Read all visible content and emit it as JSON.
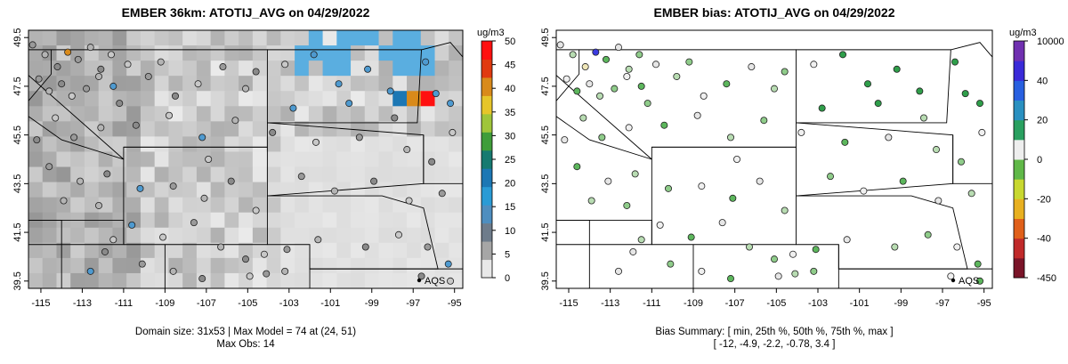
{
  "chart_data": [
    {
      "type": "map",
      "title": "EMBER 36km: ATOTIJ_AVG on 04/29/2022",
      "x_ticks": [
        "-115",
        "-113",
        "-111",
        "-109",
        "-107",
        "-105",
        "-103",
        "-101",
        "-99",
        "-97",
        "-95"
      ],
      "y_ticks": [
        "39.5",
        "41.5",
        "43.5",
        "45.5",
        "47.5",
        "49.5"
      ],
      "colorbar": {
        "unit": "ug/m3",
        "ticks": [
          "0",
          "5",
          "10",
          "15",
          "20",
          "25",
          "30",
          "35",
          "40",
          "45",
          "50"
        ],
        "colors": [
          "#e8e8e8",
          "#a6a6a6",
          "#6e7c8b",
          "#4e8ebf",
          "#2a9bd5",
          "#1c77b4",
          "#167a70",
          "#3f9d3a",
          "#9fc53a",
          "#e6c52a",
          "#d98a1a",
          "#e03a10",
          "#ff1010"
        ]
      },
      "station_label": "AQS",
      "caption_lines": [
        "Domain size: 31x53 | Max Model = 74 at (24, 51)",
        "Max Obs: 14"
      ],
      "x_range": [
        -115.6,
        -94.6
      ],
      "y_range": [
        39.2,
        49.8
      ]
    },
    {
      "type": "map",
      "title": "EMBER bias: ATOTIJ_AVG on 04/29/2022",
      "x_ticks": [
        "-115",
        "-113",
        "-111",
        "-109",
        "-107",
        "-105",
        "-103",
        "-101",
        "-99",
        "-97",
        "-95"
      ],
      "y_ticks": [
        "39.5",
        "41.5",
        "43.5",
        "45.5",
        "47.5",
        "49.5"
      ],
      "colorbar": {
        "unit": "ug/m3",
        "ticks": [
          "10000",
          "40",
          "20",
          "0",
          "-20",
          "-40",
          "-450"
        ],
        "colors": [
          "#7a1428",
          "#c02a2a",
          "#e0601a",
          "#e8b020",
          "#c8d830",
          "#60b848",
          "#eeeeee",
          "#2aa060",
          "#2a90c0",
          "#2860e0",
          "#3a2ad8",
          "#7030b0"
        ]
      },
      "station_label": "AQS",
      "caption_lines": [
        "Bias Summary: [ min, 25th %, 50th %, 75th %, max ]",
        "[ -12,   -4.9,   -2.2,   -0.78,   3.4 ]"
      ],
      "x_range": [
        -115.6,
        -94.6
      ],
      "y_range": [
        39.2,
        49.8
      ]
    }
  ]
}
